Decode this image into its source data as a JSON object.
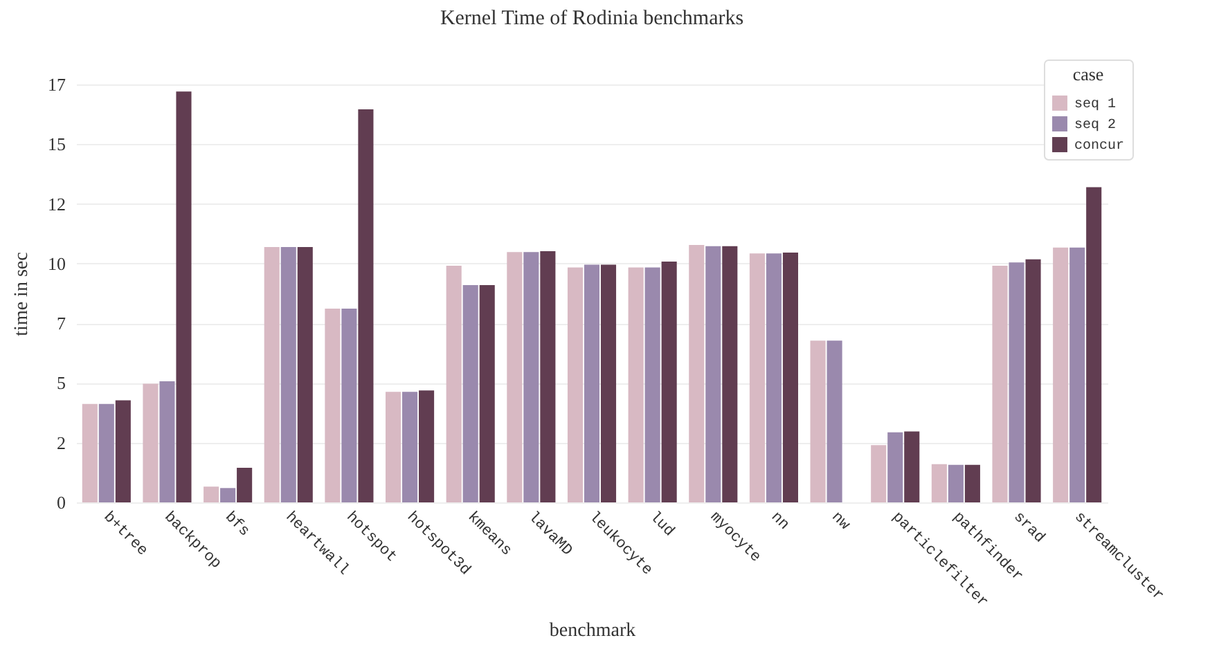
{
  "chart_data": {
    "type": "bar",
    "title": "Kernel Time of Rodinia benchmarks",
    "xlabel": "benchmark",
    "ylabel": "time in sec",
    "legend_title": "case",
    "categories": [
      "b+tree",
      "backprop",
      "bfs",
      "heartwall",
      "hotspot",
      "hotspot3d",
      "kmeans",
      "lavaMD",
      "leukocyte",
      "lud",
      "myocyte",
      "nn",
      "nw",
      "particlefilter",
      "pathfinder",
      "srad",
      "streamcluster"
    ],
    "series": [
      {
        "name": "seq 1",
        "color": "#d8b9c3",
        "values": [
          4.12,
          4.97,
          0.66,
          10.69,
          8.11,
          4.63,
          9.91,
          10.48,
          9.84,
          9.84,
          10.78,
          10.42,
          6.77,
          2.4,
          1.6,
          9.91,
          10.67
        ]
      },
      {
        "name": "seq 2",
        "color": "#9a89ad",
        "values": [
          4.12,
          5.07,
          0.6,
          10.69,
          8.11,
          4.63,
          9.1,
          10.48,
          9.95,
          9.84,
          10.73,
          10.42,
          6.77,
          2.93,
          1.57,
          10.05,
          10.67
        ]
      },
      {
        "name": "concur",
        "color": "#613d51",
        "values": [
          4.27,
          17.2,
          1.45,
          10.69,
          16.46,
          4.69,
          9.1,
          10.52,
          9.95,
          10.08,
          10.73,
          10.46,
          null,
          2.97,
          1.57,
          10.18,
          13.2
        ]
      }
    ],
    "ylim": [
      0,
      17.5
    ],
    "yticks": [
      0,
      {
        "value": 2.5,
        "label": "2"
      },
      5,
      {
        "value": 7.5,
        "label": "7"
      },
      10,
      {
        "value": 12.5,
        "label": "12"
      },
      15,
      {
        "value": 17.5,
        "label": "17"
      }
    ],
    "grid": "y",
    "legend": "top right"
  }
}
